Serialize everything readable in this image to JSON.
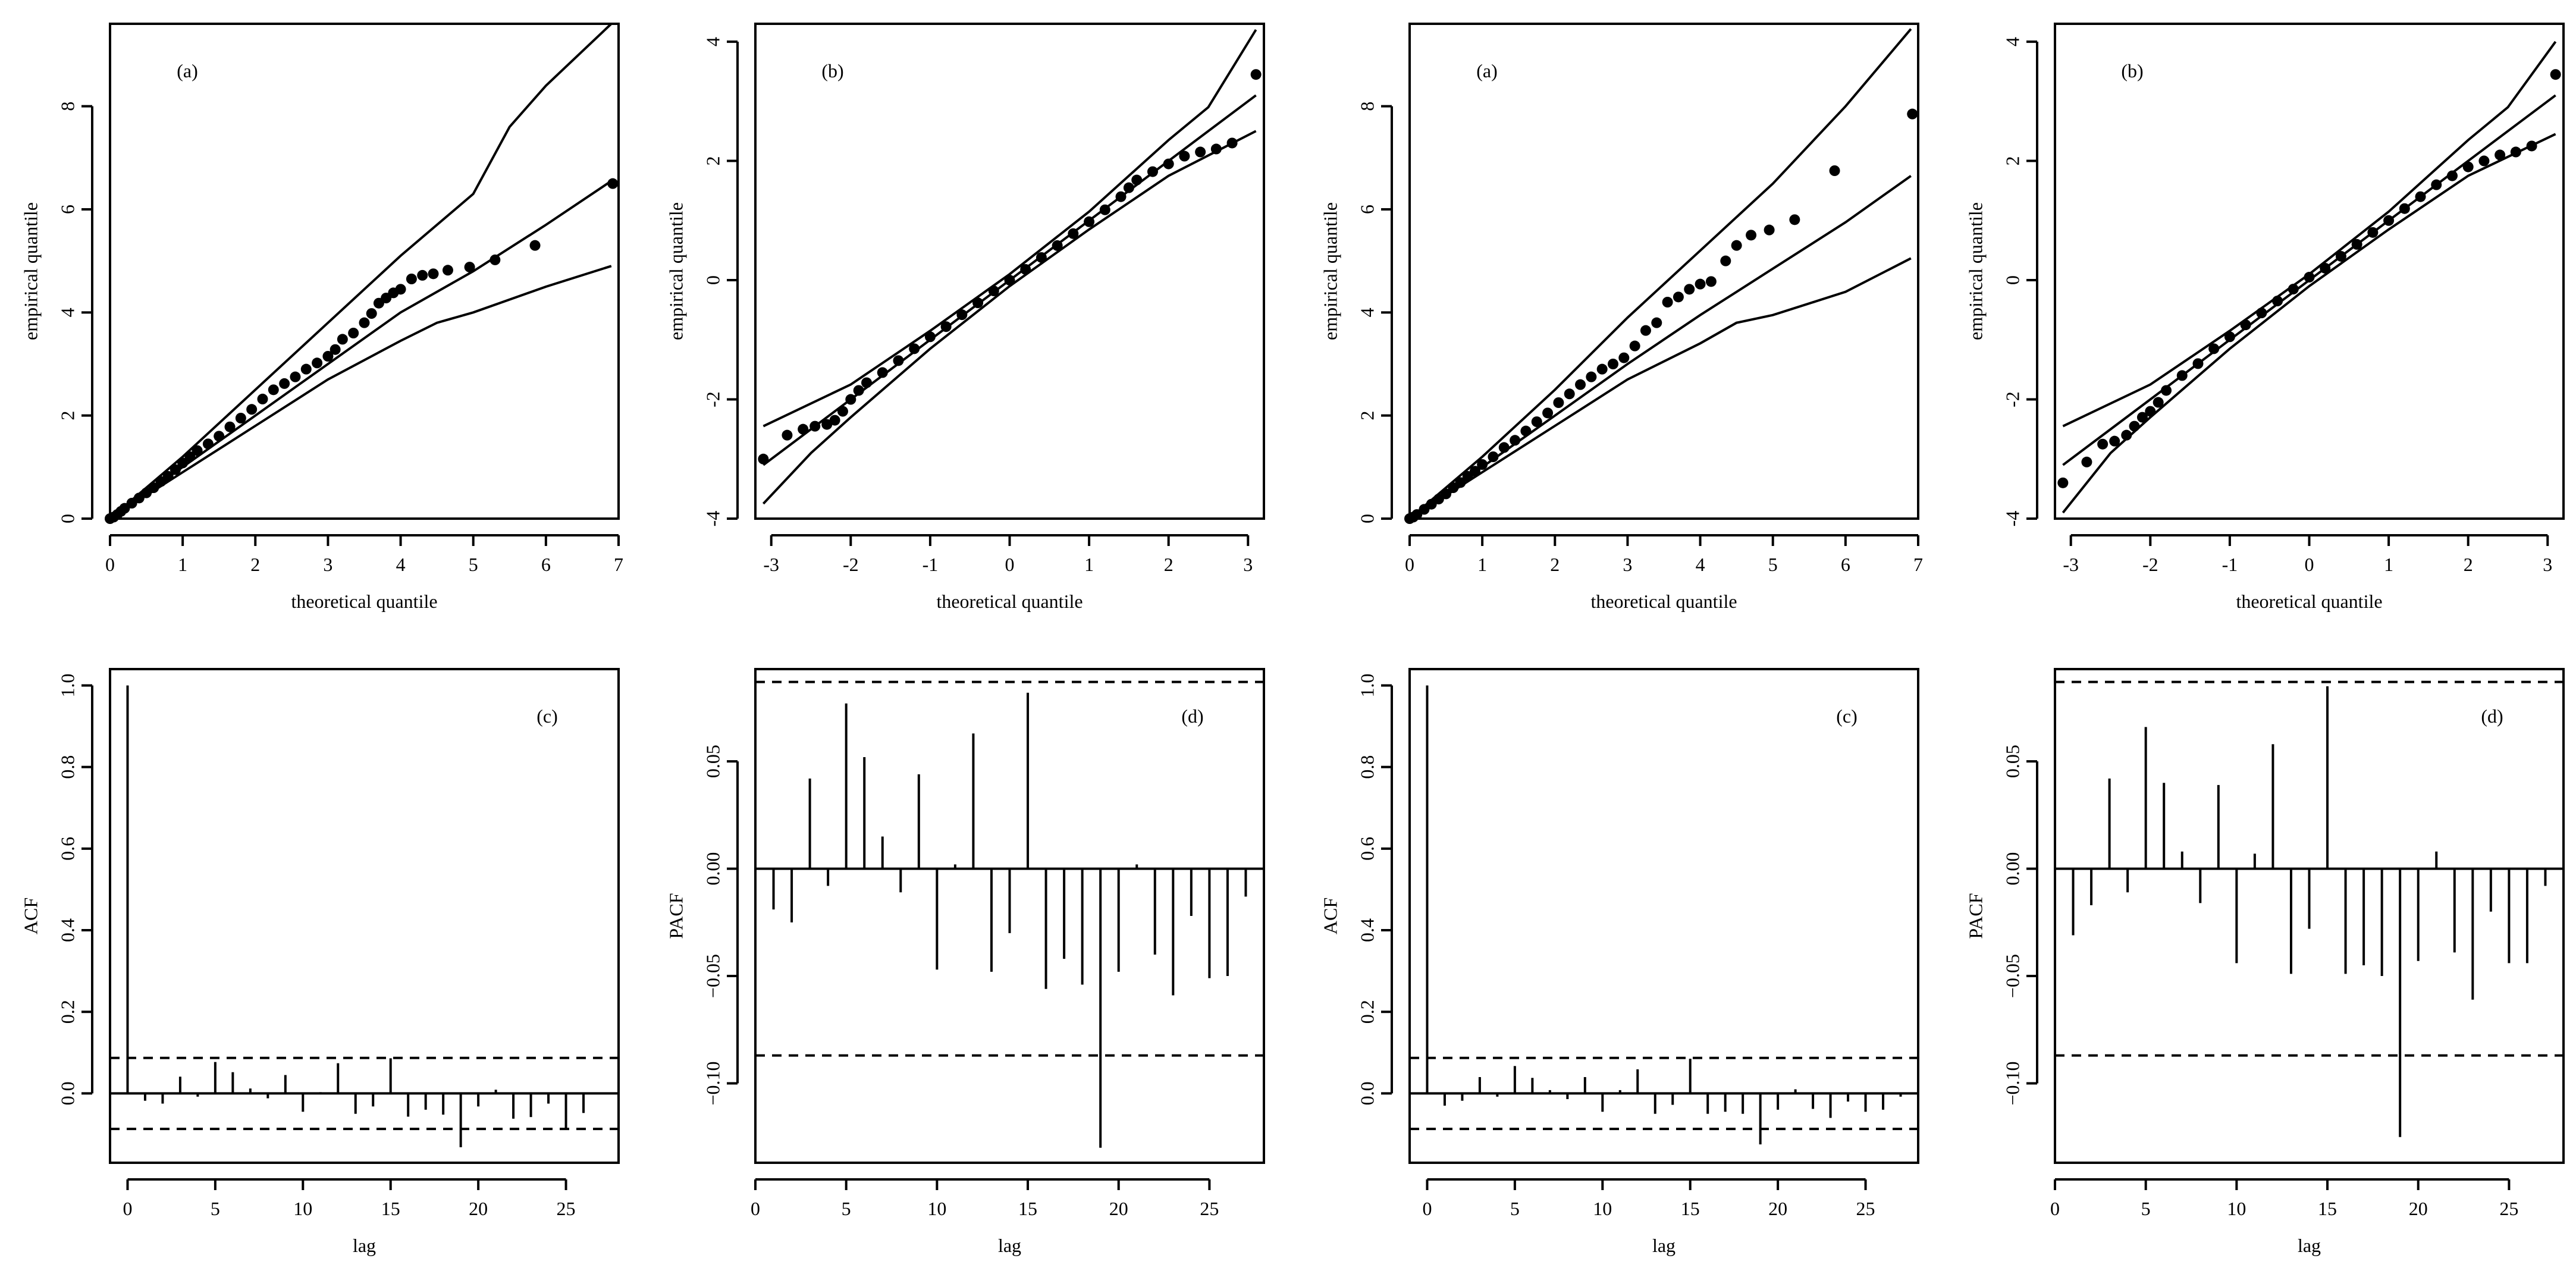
{
  "chart_data": [
    {
      "id": "qq-a-left",
      "type": "scatter",
      "panel_label": "(a)",
      "xlabel": "theoretical quantile",
      "ylabel": "empirical quantile",
      "xlim": [
        0,
        7
      ],
      "ylim": [
        0,
        9.6
      ],
      "xticks": [
        0,
        1,
        2,
        3,
        4,
        5,
        6,
        7
      ],
      "yticks": [
        0,
        2,
        4,
        6,
        8
      ],
      "points": [
        [
          0,
          0
        ],
        [
          0.05,
          0.03
        ],
        [
          0.1,
          0.08
        ],
        [
          0.15,
          0.14
        ],
        [
          0.2,
          0.2
        ],
        [
          0.3,
          0.3
        ],
        [
          0.4,
          0.4
        ],
        [
          0.5,
          0.5
        ],
        [
          0.6,
          0.6
        ],
        [
          0.7,
          0.72
        ],
        [
          0.8,
          0.82
        ],
        [
          0.9,
          0.95
        ],
        [
          1.0,
          1.08
        ],
        [
          1.1,
          1.2
        ],
        [
          1.2,
          1.32
        ],
        [
          1.35,
          1.45
        ],
        [
          1.5,
          1.6
        ],
        [
          1.65,
          1.78
        ],
        [
          1.8,
          1.95
        ],
        [
          1.95,
          2.12
        ],
        [
          2.1,
          2.32
        ],
        [
          2.25,
          2.5
        ],
        [
          2.4,
          2.62
        ],
        [
          2.55,
          2.75
        ],
        [
          2.7,
          2.9
        ],
        [
          2.85,
          3.02
        ],
        [
          3.0,
          3.15
        ],
        [
          3.1,
          3.28
        ],
        [
          3.2,
          3.48
        ],
        [
          3.35,
          3.6
        ],
        [
          3.5,
          3.8
        ],
        [
          3.6,
          3.98
        ],
        [
          3.7,
          4.18
        ],
        [
          3.8,
          4.28
        ],
        [
          3.9,
          4.38
        ],
        [
          4.0,
          4.45
        ],
        [
          4.15,
          4.65
        ],
        [
          4.3,
          4.72
        ],
        [
          4.45,
          4.75
        ],
        [
          4.65,
          4.82
        ],
        [
          4.95,
          4.88
        ],
        [
          5.3,
          5.02
        ],
        [
          5.85,
          5.3
        ],
        [
          6.92,
          6.5
        ]
      ],
      "lines": [
        {
          "name": "upper",
          "x": [
            0,
            1,
            2,
            3,
            4,
            5,
            5.5,
            6,
            6.9
          ],
          "y": [
            0,
            1.2,
            2.5,
            3.8,
            5.1,
            6.3,
            7.6,
            8.4,
            9.6
          ]
        },
        {
          "name": "middle",
          "x": [
            0,
            1,
            2,
            3,
            4,
            5,
            6,
            6.9
          ],
          "y": [
            0,
            1.0,
            2.0,
            3.0,
            4.0,
            4.8,
            5.7,
            6.55
          ]
        },
        {
          "name": "lower",
          "x": [
            0,
            1,
            2,
            3,
            4,
            4.5,
            5,
            6,
            6.9
          ],
          "y": [
            0,
            0.9,
            1.8,
            2.7,
            3.45,
            3.8,
            4.0,
            4.5,
            4.9
          ]
        }
      ]
    },
    {
      "id": "qq-b-left",
      "type": "scatter",
      "panel_label": "(b)",
      "xlabel": "theoretical quantile",
      "ylabel": "empirical quantile",
      "xlim": [
        -3.2,
        3.2
      ],
      "ylim": [
        -4,
        4.3
      ],
      "xticks": [
        -3,
        -2,
        -1,
        0,
        1,
        2,
        3
      ],
      "yticks": [
        -4,
        -2,
        0,
        2,
        4
      ],
      "points": [
        [
          -3.1,
          -3.0
        ],
        [
          -2.8,
          -2.6
        ],
        [
          -2.6,
          -2.5
        ],
        [
          -2.45,
          -2.45
        ],
        [
          -2.3,
          -2.42
        ],
        [
          -2.2,
          -2.35
        ],
        [
          -2.1,
          -2.2
        ],
        [
          -2.0,
          -2.0
        ],
        [
          -1.9,
          -1.85
        ],
        [
          -1.8,
          -1.72
        ],
        [
          -1.6,
          -1.55
        ],
        [
          -1.4,
          -1.35
        ],
        [
          -1.2,
          -1.15
        ],
        [
          -1.0,
          -0.95
        ],
        [
          -0.8,
          -0.78
        ],
        [
          -0.6,
          -0.58
        ],
        [
          -0.4,
          -0.38
        ],
        [
          -0.2,
          -0.18
        ],
        [
          0,
          0
        ],
        [
          0.2,
          0.18
        ],
        [
          0.4,
          0.38
        ],
        [
          0.6,
          0.58
        ],
        [
          0.8,
          0.78
        ],
        [
          1.0,
          0.98
        ],
        [
          1.2,
          1.18
        ],
        [
          1.4,
          1.4
        ],
        [
          1.5,
          1.55
        ],
        [
          1.6,
          1.68
        ],
        [
          1.8,
          1.82
        ],
        [
          2.0,
          1.95
        ],
        [
          2.2,
          2.08
        ],
        [
          2.4,
          2.15
        ],
        [
          2.6,
          2.2
        ],
        [
          2.8,
          2.3
        ],
        [
          3.1,
          3.45
        ]
      ],
      "lines": [
        {
          "name": "upper",
          "x": [
            -3.1,
            -2,
            -1,
            0,
            1,
            2,
            2.5,
            3.1
          ],
          "y": [
            -2.45,
            -1.75,
            -0.85,
            0.1,
            1.15,
            2.35,
            2.9,
            4.2
          ]
        },
        {
          "name": "middle",
          "x": [
            -3.1,
            3.1
          ],
          "y": [
            -3.1,
            3.1
          ]
        },
        {
          "name": "lower",
          "x": [
            -3.1,
            -2.5,
            -2,
            -1,
            0,
            1,
            2,
            3.1
          ],
          "y": [
            -3.75,
            -2.9,
            -2.3,
            -1.15,
            -0.1,
            0.85,
            1.75,
            2.5
          ]
        }
      ]
    },
    {
      "id": "qq-a-right",
      "type": "scatter",
      "panel_label": "(a)",
      "xlabel": "theoretical quantile",
      "ylabel": "empirical quantile",
      "xlim": [
        0,
        7
      ],
      "ylim": [
        0,
        9.6
      ],
      "xticks": [
        0,
        1,
        2,
        3,
        4,
        5,
        6,
        7
      ],
      "yticks": [
        0,
        2,
        4,
        6,
        8
      ],
      "points": [
        [
          0,
          0
        ],
        [
          0.05,
          0.03
        ],
        [
          0.1,
          0.08
        ],
        [
          0.2,
          0.18
        ],
        [
          0.3,
          0.28
        ],
        [
          0.4,
          0.38
        ],
        [
          0.5,
          0.48
        ],
        [
          0.6,
          0.6
        ],
        [
          0.7,
          0.7
        ],
        [
          0.8,
          0.82
        ],
        [
          0.9,
          0.92
        ],
        [
          1.0,
          1.05
        ],
        [
          1.15,
          1.2
        ],
        [
          1.3,
          1.38
        ],
        [
          1.45,
          1.52
        ],
        [
          1.6,
          1.7
        ],
        [
          1.75,
          1.88
        ],
        [
          1.9,
          2.05
        ],
        [
          2.05,
          2.25
        ],
        [
          2.2,
          2.42
        ],
        [
          2.35,
          2.6
        ],
        [
          2.5,
          2.75
        ],
        [
          2.65,
          2.9
        ],
        [
          2.8,
          3.0
        ],
        [
          2.95,
          3.12
        ],
        [
          3.1,
          3.35
        ],
        [
          3.25,
          3.65
        ],
        [
          3.4,
          3.8
        ],
        [
          3.55,
          4.2
        ],
        [
          3.7,
          4.3
        ],
        [
          3.85,
          4.45
        ],
        [
          4.0,
          4.55
        ],
        [
          4.15,
          4.6
        ],
        [
          4.35,
          5.0
        ],
        [
          4.5,
          5.3
        ],
        [
          4.7,
          5.5
        ],
        [
          4.95,
          5.6
        ],
        [
          5.3,
          5.8
        ],
        [
          5.85,
          6.75
        ],
        [
          6.92,
          7.85
        ]
      ],
      "lines": [
        {
          "name": "upper",
          "x": [
            0,
            1,
            2,
            3,
            4,
            5,
            6,
            6.9
          ],
          "y": [
            0,
            1.2,
            2.5,
            3.9,
            5.2,
            6.5,
            8.0,
            9.5
          ]
        },
        {
          "name": "middle",
          "x": [
            0,
            1,
            2,
            3,
            4,
            5,
            6,
            6.9
          ],
          "y": [
            0,
            1.0,
            2.0,
            3.0,
            3.95,
            4.85,
            5.75,
            6.65
          ]
        },
        {
          "name": "lower",
          "x": [
            0,
            1,
            2,
            3,
            4,
            4.5,
            5,
            6,
            6.9
          ],
          "y": [
            0,
            0.9,
            1.8,
            2.7,
            3.4,
            3.8,
            3.95,
            4.4,
            5.05
          ]
        }
      ]
    },
    {
      "id": "qq-b-right",
      "type": "scatter",
      "panel_label": "(b)",
      "xlabel": "theoretical quantile",
      "ylabel": "empirical quantile",
      "xlim": [
        -3.2,
        3.2
      ],
      "ylim": [
        -4,
        4.3
      ],
      "xticks": [
        -3,
        -2,
        -1,
        0,
        1,
        2,
        3
      ],
      "yticks": [
        -4,
        -2,
        0,
        2,
        4
      ],
      "points": [
        [
          -3.1,
          -3.4
        ],
        [
          -2.8,
          -3.05
        ],
        [
          -2.6,
          -2.75
        ],
        [
          -2.45,
          -2.7
        ],
        [
          -2.3,
          -2.6
        ],
        [
          -2.2,
          -2.45
        ],
        [
          -2.1,
          -2.3
        ],
        [
          -2.0,
          -2.2
        ],
        [
          -1.9,
          -2.05
        ],
        [
          -1.8,
          -1.85
        ],
        [
          -1.6,
          -1.6
        ],
        [
          -1.4,
          -1.4
        ],
        [
          -1.2,
          -1.15
        ],
        [
          -1.0,
          -0.95
        ],
        [
          -0.8,
          -0.75
        ],
        [
          -0.6,
          -0.55
        ],
        [
          -0.4,
          -0.35
        ],
        [
          -0.2,
          -0.15
        ],
        [
          0,
          0.05
        ],
        [
          0.2,
          0.2
        ],
        [
          0.4,
          0.4
        ],
        [
          0.6,
          0.6
        ],
        [
          0.8,
          0.8
        ],
        [
          1.0,
          1.0
        ],
        [
          1.2,
          1.2
        ],
        [
          1.4,
          1.4
        ],
        [
          1.6,
          1.6
        ],
        [
          1.8,
          1.75
        ],
        [
          2.0,
          1.9
        ],
        [
          2.2,
          2.0
        ],
        [
          2.4,
          2.1
        ],
        [
          2.6,
          2.15
        ],
        [
          2.8,
          2.25
        ],
        [
          3.1,
          3.45
        ]
      ],
      "lines": [
        {
          "name": "upper",
          "x": [
            -3.1,
            -2,
            -1,
            0,
            1,
            2,
            2.5,
            3.1
          ],
          "y": [
            -2.45,
            -1.75,
            -0.85,
            0.1,
            1.15,
            2.35,
            2.9,
            4.0
          ]
        },
        {
          "name": "middle",
          "x": [
            -3.1,
            3.1
          ],
          "y": [
            -3.1,
            3.1
          ]
        },
        {
          "name": "lower",
          "x": [
            -3.1,
            -2.5,
            -2,
            -1,
            0,
            1,
            2,
            3.1
          ],
          "y": [
            -3.9,
            -2.9,
            -2.3,
            -1.15,
            -0.1,
            0.85,
            1.75,
            2.45
          ]
        }
      ]
    },
    {
      "id": "acf-c-left",
      "type": "bar",
      "panel_label": "(c)",
      "xlabel": "lag",
      "ylabel": "ACF",
      "xlim": [
        -1,
        28
      ],
      "ylim": [
        -0.17,
        1.04
      ],
      "xticks": [
        0,
        5,
        10,
        15,
        20,
        25
      ],
      "yticks": [
        0.0,
        0.2,
        0.4,
        0.6,
        0.8,
        1.0
      ],
      "ytick_labels": [
        "0.0",
        "0.2",
        "0.4",
        "0.6",
        "0.8",
        "1.0"
      ],
      "lags": [
        0,
        1,
        2,
        3,
        4,
        5,
        6,
        7,
        8,
        9,
        10,
        11,
        12,
        13,
        14,
        15,
        16,
        17,
        18,
        19,
        20,
        21,
        22,
        23,
        24,
        25,
        26
      ],
      "values": [
        1.0,
        -0.018,
        -0.025,
        0.041,
        -0.008,
        0.077,
        0.052,
        0.012,
        -0.012,
        0.045,
        -0.045,
        0.003,
        0.074,
        -0.05,
        -0.032,
        0.086,
        -0.057,
        -0.04,
        -0.052,
        -0.132,
        -0.032,
        0.009,
        -0.062,
        -0.058,
        -0.025,
        -0.086,
        -0.048
      ],
      "conf_band": 0.087
    },
    {
      "id": "pacf-d-left",
      "type": "bar",
      "panel_label": "(d)",
      "xlabel": "lag",
      "ylabel": "PACF",
      "xlim": [
        0,
        28
      ],
      "ylim": [
        -0.137,
        0.093
      ],
      "xticks": [
        0,
        5,
        10,
        15,
        20,
        25
      ],
      "yticks": [
        -0.1,
        -0.05,
        0.0,
        0.05
      ],
      "ytick_labels": [
        "−0.10",
        "−0.05",
        "0.00",
        "0.05"
      ],
      "lags": [
        1,
        2,
        3,
        4,
        5,
        6,
        7,
        8,
        9,
        10,
        11,
        12,
        13,
        14,
        15,
        16,
        17,
        18,
        19,
        20,
        21,
        22,
        23,
        24,
        25,
        26,
        27
      ],
      "values": [
        -0.019,
        -0.025,
        0.042,
        -0.008,
        0.077,
        0.052,
        0.015,
        -0.011,
        0.044,
        -0.047,
        0.002,
        0.063,
        -0.048,
        -0.03,
        0.082,
        -0.056,
        -0.042,
        -0.054,
        -0.13,
        -0.048,
        0.002,
        -0.04,
        -0.059,
        -0.022,
        -0.051,
        -0.05,
        -0.013
      ],
      "conf_band": 0.087
    },
    {
      "id": "acf-c-right",
      "type": "bar",
      "panel_label": "(c)",
      "xlabel": "lag",
      "ylabel": "ACF",
      "xlim": [
        -1,
        28
      ],
      "ylim": [
        -0.17,
        1.04
      ],
      "xticks": [
        0,
        5,
        10,
        15,
        20,
        25
      ],
      "yticks": [
        0.0,
        0.2,
        0.4,
        0.6,
        0.8,
        1.0
      ],
      "ytick_labels": [
        "0.0",
        "0.2",
        "0.4",
        "0.6",
        "0.8",
        "1.0"
      ],
      "lags": [
        0,
        1,
        2,
        3,
        4,
        5,
        6,
        7,
        8,
        9,
        10,
        11,
        12,
        13,
        14,
        15,
        16,
        17,
        18,
        19,
        20,
        21,
        22,
        23,
        24,
        25,
        26,
        27
      ],
      "values": [
        1.0,
        -0.03,
        -0.018,
        0.04,
        -0.008,
        0.067,
        0.038,
        0.008,
        -0.014,
        0.04,
        -0.045,
        0.008,
        0.059,
        -0.05,
        -0.028,
        0.085,
        -0.05,
        -0.045,
        -0.05,
        -0.125,
        -0.04,
        0.01,
        -0.038,
        -0.06,
        -0.02,
        -0.045,
        -0.04,
        -0.008
      ],
      "conf_band": 0.087
    },
    {
      "id": "pacf-d-right",
      "type": "bar",
      "panel_label": "(d)",
      "xlabel": "lag",
      "ylabel": "PACF",
      "xlim": [
        0,
        28
      ],
      "ylim": [
        -0.137,
        0.093
      ],
      "xticks": [
        0,
        5,
        10,
        15,
        20,
        25
      ],
      "yticks": [
        -0.1,
        -0.05,
        0.0,
        0.05
      ],
      "ytick_labels": [
        "−0.10",
        "−0.05",
        "0.00",
        "0.05"
      ],
      "lags": [
        1,
        2,
        3,
        4,
        5,
        6,
        7,
        8,
        9,
        10,
        11,
        12,
        13,
        14,
        15,
        16,
        17,
        18,
        19,
        20,
        21,
        22,
        23,
        24,
        25,
        26,
        27
      ],
      "values": [
        -0.031,
        -0.017,
        0.042,
        -0.011,
        0.066,
        0.04,
        0.008,
        -0.016,
        0.039,
        -0.044,
        0.007,
        0.058,
        -0.049,
        -0.028,
        0.085,
        -0.049,
        -0.045,
        -0.05,
        -0.125,
        -0.043,
        0.008,
        -0.039,
        -0.061,
        -0.02,
        -0.044,
        -0.044,
        -0.008
      ],
      "conf_band": 0.087
    }
  ]
}
